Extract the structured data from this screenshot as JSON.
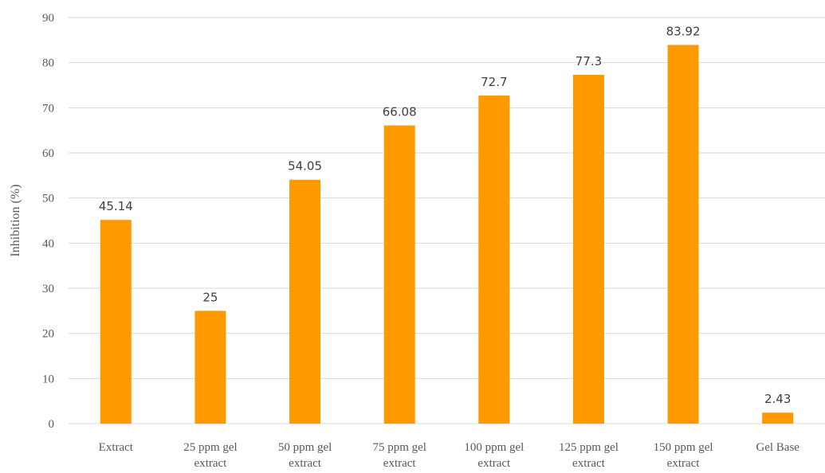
{
  "chart_data": {
    "type": "bar",
    "title": "",
    "xlabel": "",
    "ylabel": "Inhibition (%)",
    "ylim": [
      0,
      90
    ],
    "yticks": [
      0,
      10,
      20,
      30,
      40,
      50,
      60,
      70,
      80,
      90
    ],
    "grid": true,
    "legend": "none",
    "bar_color": "#FF9900",
    "categories": [
      [
        "Extract"
      ],
      [
        "25 ppm gel",
        "extract"
      ],
      [
        "50 ppm gel",
        "extract"
      ],
      [
        "75 ppm gel",
        "extract"
      ],
      [
        "100 ppm gel",
        "extract"
      ],
      [
        "125 ppm gel",
        "extract"
      ],
      [
        "150 ppm gel",
        "extract"
      ],
      [
        "Gel Base"
      ]
    ],
    "values": [
      45.14,
      25,
      54.05,
      66.08,
      72.7,
      77.3,
      83.92,
      2.43
    ],
    "data_labels": [
      "45.14",
      "25",
      "54.05",
      "66.08",
      "72.7",
      "77.3",
      "83.92",
      "2.43"
    ]
  }
}
